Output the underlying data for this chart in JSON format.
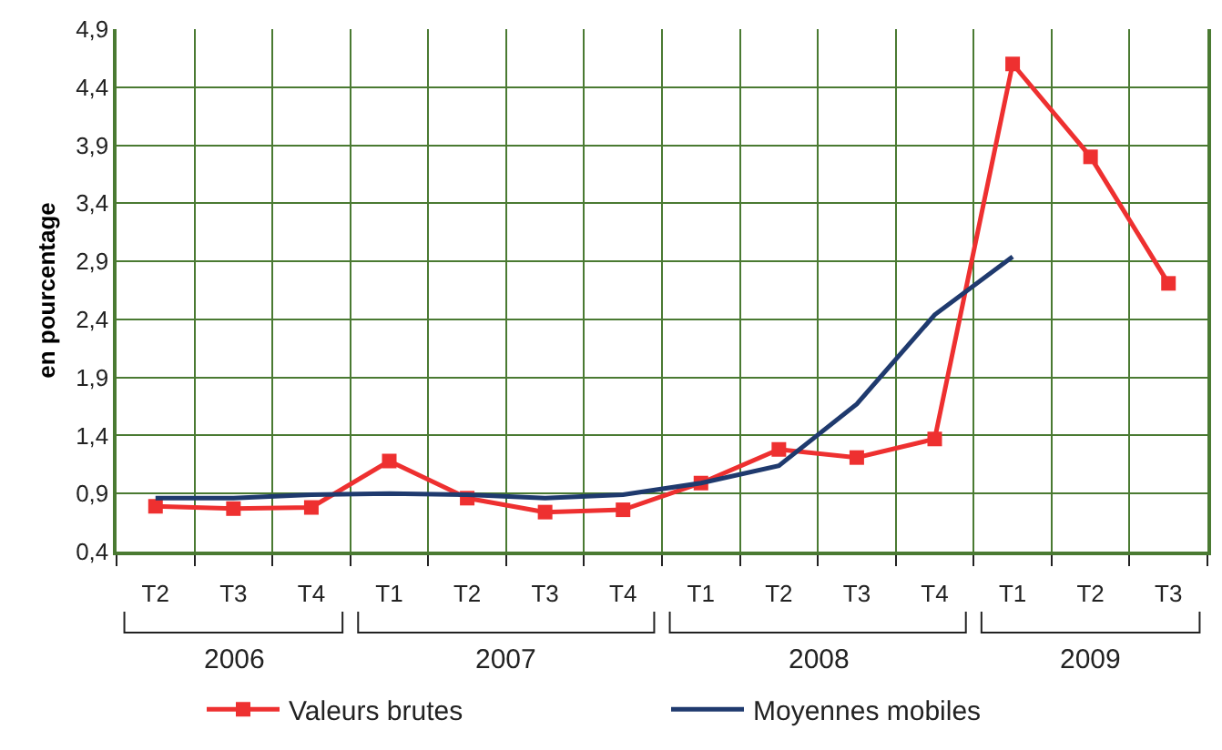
{
  "chart_data": {
    "type": "line",
    "ylabel": "en pourcentage",
    "categories": [
      "T2",
      "T3",
      "T4",
      "T1",
      "T2",
      "T3",
      "T4",
      "T1",
      "T2",
      "T3",
      "T4",
      "T1",
      "T2",
      "T3"
    ],
    "annotations": [
      "2006",
      "2007",
      "2008",
      "2009"
    ],
    "series": [
      {
        "name": "Valeurs brutes",
        "color": "#ee3030",
        "marker": "square",
        "values": [
          0.79,
          0.77,
          0.78,
          1.18,
          0.86,
          0.74,
          0.76,
          0.99,
          1.28,
          1.21,
          1.37,
          4.6,
          3.8,
          2.71
        ]
      },
      {
        "name": "Moyennes mobiles",
        "color": "#1f3a6e",
        "marker": "none",
        "values": [
          0.86,
          0.86,
          0.89,
          0.9,
          0.89,
          0.86,
          0.89,
          0.99,
          1.14,
          1.67,
          2.44,
          2.94,
          null,
          null
        ]
      }
    ],
    "ylim": [
      0.4,
      4.9
    ],
    "yticks": [
      {
        "value": 0.4,
        "label": "0,4"
      },
      {
        "value": 0.9,
        "label": "0,9"
      },
      {
        "value": 1.4,
        "label": "1,4"
      },
      {
        "value": 1.9,
        "label": "1,9"
      },
      {
        "value": 2.4,
        "label": "2,4"
      },
      {
        "value": 2.9,
        "label": "2,9"
      },
      {
        "value": 3.4,
        "label": "3,4"
      },
      {
        "value": 3.9,
        "label": "3,9"
      },
      {
        "value": 4.4,
        "label": "4,4"
      },
      {
        "value": 4.9,
        "label": "4,9"
      }
    ],
    "grid": true,
    "legend": "bottom"
  }
}
